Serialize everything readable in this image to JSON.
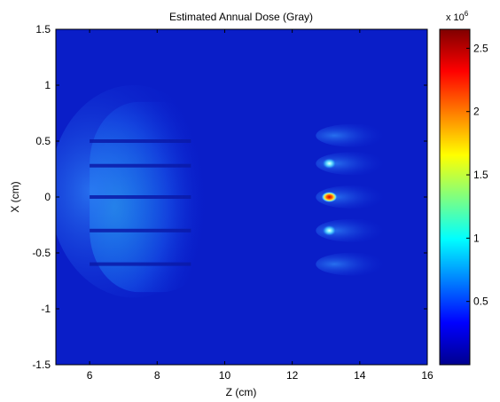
{
  "chart_data": {
    "type": "heatmap",
    "title": "Estimated Annual Dose (Gray)",
    "xlabel": "Z (cm)",
    "ylabel": "X (cm)",
    "xlim": [
      5,
      16
    ],
    "ylim": [
      -1.5,
      1.5
    ],
    "x_ticks": [
      "6",
      "8",
      "10",
      "12",
      "14",
      "16"
    ],
    "y_ticks": [
      "1.5",
      "1",
      "0.5",
      "0",
      "-0.5",
      "-1",
      "-1.5"
    ],
    "grid": false,
    "colormap": "jet",
    "colorbar": {
      "range": [
        0,
        2650000
      ],
      "ticks": [
        "0.5",
        "1",
        "1.5",
        "2",
        "2.5"
      ],
      "multiplier_base": "x 10",
      "multiplier_exponent": "6"
    },
    "regions": [
      {
        "label": "broad source region",
        "z_range": [
          6,
          9.6
        ],
        "x_range": [
          -0.85,
          0.85
        ],
        "peak_value": 1100000
      },
      {
        "label": "hot spot",
        "z": 13.1,
        "x": 0.3,
        "value": 1400000
      },
      {
        "label": "hot spot",
        "z": 13.1,
        "x": 0.0,
        "value": 2650000
      },
      {
        "label": "hot spot",
        "z": 13.1,
        "x": -0.3,
        "value": 1500000
      }
    ]
  }
}
